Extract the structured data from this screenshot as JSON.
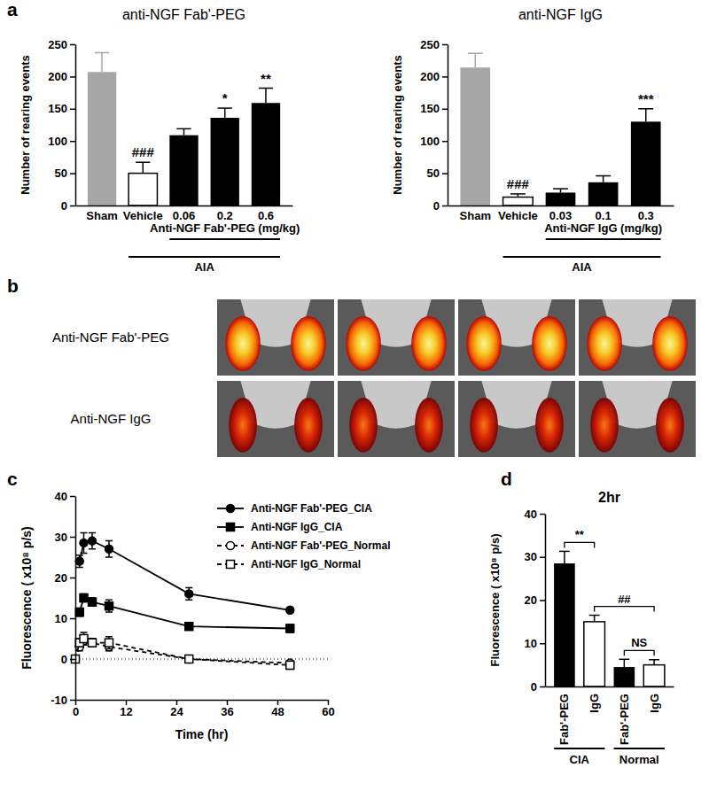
{
  "chart_data": [
    {
      "panel": "a",
      "type": "bar",
      "title": "anti-NGF Fab'-PEG",
      "y_label": "Number of rearing events",
      "categories": [
        "Sham",
        "Vehicle",
        "0.06",
        "0.2",
        "0.6"
      ],
      "values": [
        207,
        50,
        109,
        136,
        159
      ],
      "errors": [
        30,
        17,
        10,
        15,
        23
      ],
      "colors": [
        "#a6a6a6",
        "#ffffff",
        "#000000",
        "#000000",
        "#000000"
      ],
      "ylim": [
        0,
        250
      ],
      "yticks": [
        0,
        50,
        100,
        150,
        200,
        250
      ],
      "annotations": [
        {
          "text": "###",
          "index": 1
        },
        {
          "text": "*",
          "index": 3
        },
        {
          "text": "**",
          "index": 4
        }
      ],
      "groups": [
        {
          "label": "Anti-NGF Fab'-PEG (mg/kg)",
          "from": 2,
          "to": 4
        },
        {
          "label": "AIA",
          "from": 1,
          "to": 4
        }
      ]
    },
    {
      "type": "bar",
      "title": "anti-NGF IgG",
      "y_label": "Number of rearing events",
      "categories": [
        "Sham",
        "Vehicle",
        "0.03",
        "0.1",
        "0.3"
      ],
      "values": [
        214,
        13,
        20,
        36,
        130
      ],
      "errors": [
        22,
        5,
        6,
        10,
        20
      ],
      "colors": [
        "#a6a6a6",
        "#ffffff",
        "#000000",
        "#000000",
        "#000000"
      ],
      "ylim": [
        0,
        250
      ],
      "yticks": [
        0,
        50,
        100,
        150,
        200,
        250
      ],
      "annotations": [
        {
          "text": "###",
          "index": 1
        },
        {
          "text": "***",
          "index": 4
        }
      ],
      "groups": [
        {
          "label": "Anti-NGF IgG (mg/kg)",
          "from": 2,
          "to": 4
        },
        {
          "label": "AIA",
          "from": 1,
          "to": 4
        }
      ]
    },
    {
      "panel": "c",
      "type": "line",
      "x_label": "Time (hr)",
      "y_label": "Fluorescence ( x10⁸ p/s)",
      "xlim": [
        0,
        60
      ],
      "xticks": [
        0,
        12,
        24,
        36,
        48,
        60
      ],
      "ylim": [
        -10,
        40
      ],
      "yticks": [
        -10,
        0,
        10,
        20,
        30,
        40
      ],
      "baseline": 0,
      "legend": "upper right",
      "series": [
        {
          "name": "Anti-NGF Fab'-PEG_CIA",
          "color": "#000000",
          "marker": "circle",
          "line_style": "solid",
          "x": [
            1,
            2,
            4,
            8,
            27,
            51
          ],
          "values": [
            24,
            28.5,
            29,
            27,
            16,
            12
          ],
          "errors": [
            1.5,
            2.5,
            2,
            2,
            1.5,
            0.5
          ]
        },
        {
          "name": "Anti-NGF IgG_CIA",
          "color": "#000000",
          "marker": "square",
          "line_style": "solid",
          "x": [
            1,
            2,
            4,
            8,
            27,
            51
          ],
          "values": [
            11.5,
            15,
            14,
            13,
            8,
            7.5
          ],
          "errors": [
            1,
            1,
            1,
            1.5,
            0.5,
            1
          ]
        },
        {
          "name": "Anti-NGF Fab'-PEG_Normal",
          "color": "#000000",
          "marker": "open-circle",
          "line_style": "dashed",
          "x": [
            0,
            1,
            2,
            4,
            8,
            27,
            51
          ],
          "values": [
            0,
            3,
            4.5,
            4,
            3,
            0,
            -1
          ],
          "errors": [
            0,
            1,
            1,
            1,
            1,
            0.5,
            0.5
          ]
        },
        {
          "name": "Anti-NGF IgG_Normal",
          "color": "#000000",
          "marker": "open-square",
          "line_style": "dashed",
          "x": [
            0,
            1,
            2,
            4,
            8,
            27,
            51
          ],
          "values": [
            0,
            4,
            5,
            4,
            4,
            0,
            -1.5
          ],
          "errors": [
            0,
            1,
            1.5,
            1,
            1.5,
            0.5,
            1
          ]
        }
      ]
    },
    {
      "panel": "d",
      "type": "bar",
      "title": "2hr",
      "y_label": "Fluorescence ( x10⁸ p/s)",
      "categories": [
        "Fab'-PEG",
        "IgG",
        "Fab'-PEG",
        "IgG"
      ],
      "values": [
        28.5,
        15,
        4.5,
        5
      ],
      "errors": [
        2.8,
        1.5,
        1.8,
        1.2
      ],
      "colors": [
        "#000000",
        "#ffffff",
        "#000000",
        "#ffffff"
      ],
      "ylim": [
        0,
        40
      ],
      "yticks": [
        0,
        10,
        20,
        30,
        40
      ],
      "annotations": [
        {
          "text": "**",
          "from": 0,
          "to": 1
        },
        {
          "text": "##",
          "from": 1,
          "to": 3
        },
        {
          "text": "NS",
          "from": 2,
          "to": 3
        }
      ],
      "groups": [
        {
          "label": "CIA",
          "from": 0,
          "to": 1
        },
        {
          "label": "Normal",
          "from": 2,
          "to": 3
        }
      ]
    }
  ],
  "image_panel": {
    "panel": "b",
    "rows": [
      "Anti-NGF Fab'-PEG",
      "Anti-NGF IgG"
    ]
  }
}
